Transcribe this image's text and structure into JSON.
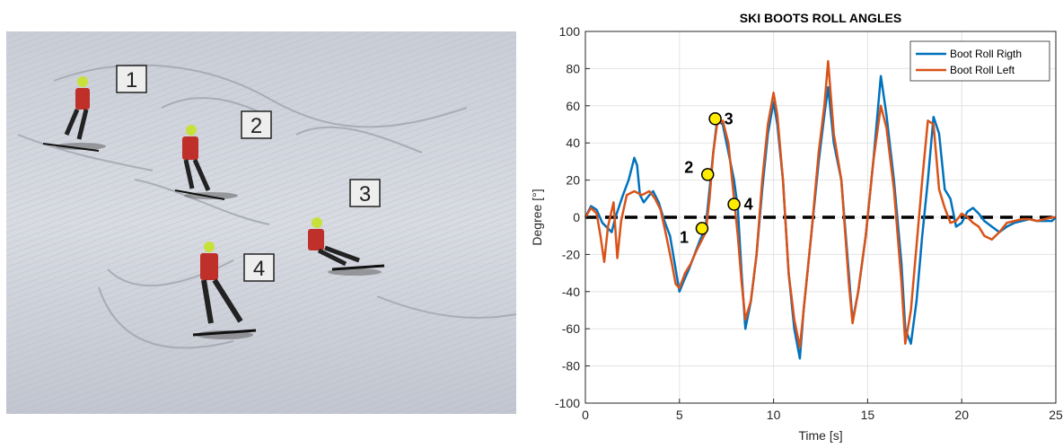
{
  "photo": {
    "labels": [
      "1",
      "2",
      "3",
      "4"
    ]
  },
  "chart_data": {
    "type": "line",
    "title": "SKI BOOTS ROLL ANGLES",
    "xlabel": "Time [s]",
    "ylabel": "Degree [°]",
    "xlim": [
      0,
      25
    ],
    "ylim": [
      -100,
      100
    ],
    "xticks": [
      0,
      5,
      10,
      15,
      20,
      25
    ],
    "yticks": [
      -100,
      -80,
      -60,
      -40,
      -20,
      0,
      20,
      40,
      60,
      80,
      100
    ],
    "grid": true,
    "legend_position": "top-right",
    "reference_line": {
      "y": 0,
      "style": "dashed",
      "color": "#000000"
    },
    "series": [
      {
        "name": "Boot Roll Rigth",
        "color": "#0072BD",
        "x": [
          0,
          0.3,
          0.6,
          0.9,
          1.2,
          1.4,
          1.6,
          1.8,
          2.0,
          2.3,
          2.6,
          2.75,
          2.9,
          3.1,
          3.4,
          3.6,
          3.9,
          4.2,
          4.5,
          4.8,
          5.0,
          5.2,
          5.5,
          5.8,
          6.1,
          6.3,
          6.4,
          6.6,
          6.8,
          7.0,
          7.3,
          7.6,
          7.9,
          8.1,
          8.3,
          8.5,
          8.8,
          9.1,
          9.4,
          9.7,
          10.0,
          10.2,
          10.5,
          10.8,
          11.1,
          11.4,
          11.6,
          12.0,
          12.4,
          12.7,
          12.9,
          13.2,
          13.6,
          14.0,
          14.2,
          14.5,
          14.9,
          15.3,
          15.7,
          16.0,
          16.4,
          16.8,
          17.0,
          17.3,
          17.6,
          17.9,
          18.2,
          18.5,
          18.8,
          19.1,
          19.4,
          19.7,
          20.0,
          20.3,
          20.6,
          20.9,
          21.2,
          21.6,
          22.0,
          22.4,
          22.8,
          23.2,
          23.6,
          24.0,
          24.4,
          24.8,
          25.0
        ],
        "y": [
          0,
          6,
          4,
          -3,
          -6,
          -8,
          0,
          6,
          12,
          20,
          32,
          28,
          12,
          8,
          12,
          14,
          8,
          -2,
          -10,
          -28,
          -40,
          -35,
          -28,
          -20,
          -12,
          -8,
          -5,
          15,
          35,
          52,
          50,
          35,
          20,
          5,
          -30,
          -60,
          -45,
          -20,
          15,
          45,
          62,
          50,
          20,
          -30,
          -60,
          -76,
          -50,
          -10,
          30,
          55,
          70,
          40,
          20,
          -30,
          -56,
          -40,
          -10,
          30,
          76,
          55,
          20,
          -25,
          -60,
          -68,
          -45,
          -10,
          20,
          54,
          45,
          15,
          10,
          -5,
          -3,
          3,
          5,
          2,
          -2,
          -5,
          -8,
          -5,
          -3,
          -2,
          -1,
          -2,
          -2,
          -2,
          0
        ]
      },
      {
        "name": "Boot Roll Left",
        "color": "#D95319",
        "x": [
          0,
          0.3,
          0.6,
          0.8,
          1.0,
          1.2,
          1.5,
          1.7,
          1.9,
          2.2,
          2.6,
          3.0,
          3.4,
          3.7,
          4.0,
          4.3,
          4.6,
          4.8,
          5.0,
          5.3,
          5.6,
          5.9,
          6.2,
          6.4,
          6.6,
          6.8,
          7.0,
          7.3,
          7.6,
          7.9,
          8.1,
          8.3,
          8.5,
          8.8,
          9.1,
          9.4,
          9.7,
          10.0,
          10.2,
          10.5,
          10.8,
          11.1,
          11.4,
          11.6,
          12.0,
          12.4,
          12.7,
          12.9,
          13.2,
          13.6,
          14.0,
          14.2,
          14.5,
          14.9,
          15.3,
          15.7,
          16.0,
          16.4,
          16.8,
          17.0,
          17.3,
          17.6,
          17.9,
          18.2,
          18.5,
          18.8,
          19.1,
          19.4,
          19.7,
          20.0,
          20.3,
          20.6,
          20.9,
          21.2,
          21.6,
          22.0,
          22.4,
          22.8,
          23.2,
          23.6,
          24.0,
          24.4,
          24.8,
          25.0
        ],
        "y": [
          0,
          5,
          2,
          -10,
          -24,
          -5,
          8,
          -22,
          -2,
          12,
          14,
          12,
          14,
          10,
          4,
          -10,
          -25,
          -36,
          -38,
          -30,
          -25,
          -18,
          -12,
          -8,
          10,
          35,
          50,
          52,
          40,
          10,
          -10,
          -35,
          -55,
          -45,
          -20,
          20,
          50,
          67,
          55,
          20,
          -30,
          -55,
          -70,
          -50,
          -10,
          35,
          60,
          84,
          45,
          20,
          -35,
          -57,
          -40,
          -10,
          30,
          60,
          48,
          15,
          -35,
          -68,
          -50,
          -15,
          20,
          52,
          50,
          15,
          5,
          -3,
          -2,
          2,
          0,
          -3,
          -5,
          -10,
          -12,
          -8,
          -3,
          -2,
          -1,
          -1,
          -2,
          -1,
          0,
          0
        ]
      }
    ],
    "annotations": [
      {
        "label": "1",
        "x": 6.2,
        "y": -6
      },
      {
        "label": "2",
        "x": 6.5,
        "y": 23
      },
      {
        "label": "3",
        "x": 6.9,
        "y": 53
      },
      {
        "label": "4",
        "x": 7.9,
        "y": 7
      }
    ]
  }
}
